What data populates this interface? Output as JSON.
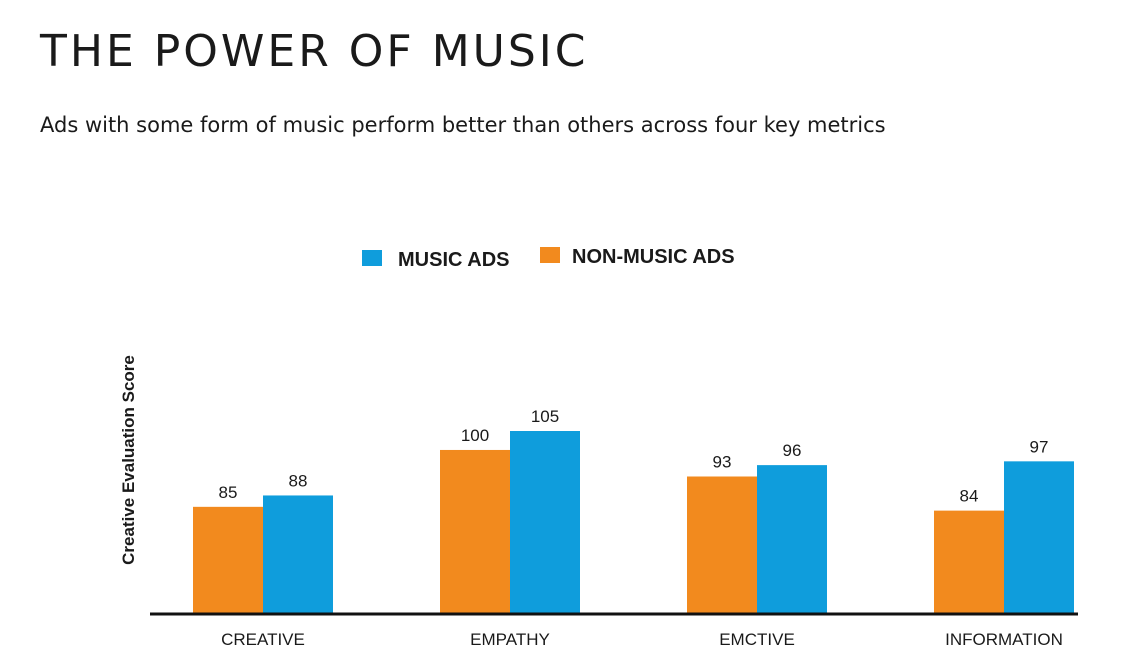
{
  "title": "THE POWER OF MUSIC",
  "subtitle": "Ads with some form of music perform better than others across four key metrics",
  "chart_data": {
    "type": "bar",
    "categories": [
      "CREATIVE",
      "EMPATHY",
      "EMCTIVE",
      "INFORMATION"
    ],
    "series": [
      {
        "name": "NON-MUSIC ADS",
        "values": [
          85,
          100,
          93,
          84
        ],
        "color": "#f28a1e"
      },
      {
        "name": "MUSIC ADS",
        "values": [
          88,
          105,
          96,
          97
        ],
        "color": "#0f9ddc"
      }
    ],
    "legend": [
      {
        "label": "MUSIC ADS",
        "color": "#0f9ddc"
      },
      {
        "label": "NON-MUSIC ADS",
        "color": "#f28a1e"
      }
    ],
    "legend_position": "top-center",
    "ylabel": "Creative Evaluation Score",
    "xlabel": "",
    "ylim": [
      57,
      105
    ],
    "grid": false
  }
}
